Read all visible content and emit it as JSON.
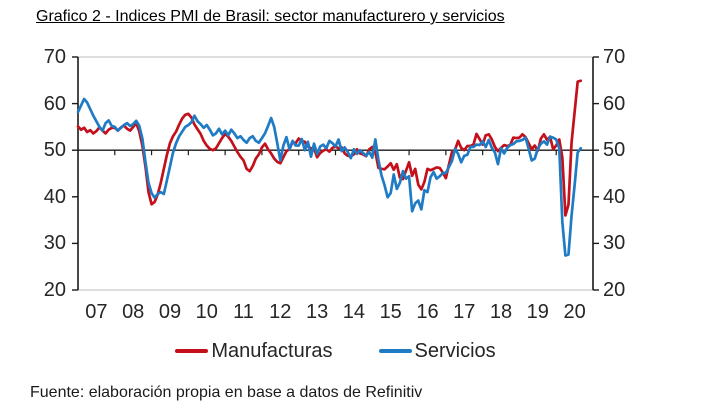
{
  "figure": {
    "title": "Grafico 2 - Indices PMI de Brasil: sector manufacturero y servicios",
    "source_note": "Fuente: elaboración propia en base a datos de Refinitiv"
  },
  "chart_data": {
    "type": "line",
    "title": "Grafico 2 - Indices PMI de Brasil: sector manufacturero y servicios",
    "x_axis": {
      "frequency": "monthly",
      "start": "2007-01",
      "end": "2020-09",
      "range_years": [
        2007,
        2021
      ],
      "tick_labels": [
        "07",
        "08",
        "09",
        "10",
        "11",
        "12",
        "13",
        "14",
        "15",
        "16",
        "17",
        "18",
        "19",
        "20"
      ]
    },
    "y_axis": {
      "range": [
        20,
        70
      ],
      "ticks": [
        70,
        60,
        50,
        40,
        30,
        20
      ],
      "label_sides": "both"
    },
    "reference_line_y": 50,
    "grid": false,
    "legend_position": "bottom",
    "colors": {
      "manufacturas": "#c3101b",
      "servicios": "#1f7bc4",
      "axis": "#1a1a1a",
      "frame": "#c9c9c9"
    },
    "series": [
      {
        "name": "Manufacturas",
        "color": "#c3101b",
        "values": [
          55.1,
          54.4,
          54.8,
          53.9,
          54.3,
          53.6,
          54.1,
          54.9,
          54.2,
          53.6,
          54.4,
          54.8,
          54.8,
          54.2,
          54.9,
          55.3,
          54.6,
          54.2,
          55.0,
          55.8,
          54.0,
          51.0,
          46.5,
          41.0,
          38.4,
          38.9,
          40.5,
          43.0,
          46.0,
          49.0,
          51.5,
          53.0,
          54.0,
          55.5,
          56.8,
          57.6,
          57.8,
          57.0,
          55.5,
          54.5,
          53.5,
          52.0,
          51.0,
          50.3,
          50.0,
          50.4,
          51.5,
          52.6,
          53.5,
          52.9,
          52.0,
          50.8,
          49.6,
          48.6,
          47.8,
          46.0,
          45.5,
          46.6,
          48.2,
          49.1,
          50.6,
          51.4,
          50.2,
          49.3,
          48.2,
          47.5,
          47.2,
          48.5,
          49.8,
          50.2,
          51.8,
          51.5,
          52.5,
          52.0,
          51.8,
          50.8,
          50.4,
          50.4,
          48.5,
          49.4,
          49.9,
          50.2,
          49.7,
          50.5,
          50.8,
          50.4,
          50.6,
          49.3,
          48.8,
          48.7,
          49.1,
          50.2,
          49.3,
          49.1,
          48.7,
          50.2,
          50.7,
          49.6,
          46.2,
          46.0,
          45.9,
          46.5,
          47.2,
          45.8,
          47.0,
          44.1,
          43.8,
          45.6,
          47.4,
          44.5,
          46.0,
          42.6,
          41.6,
          43.2,
          46.0,
          45.7,
          46.0,
          46.3,
          46.2,
          45.2,
          44.0,
          46.9,
          49.6,
          50.1,
          52.0,
          50.5,
          50.0,
          50.9,
          50.9,
          51.2,
          53.5,
          52.4,
          51.2,
          53.2,
          53.4,
          52.3,
          50.7,
          49.8,
          50.5,
          51.1,
          50.9,
          51.1,
          52.7,
          52.6,
          52.7,
          53.4,
          52.8,
          51.5,
          50.2,
          51.0,
          49.9,
          52.5,
          53.4,
          52.2,
          52.9,
          50.2,
          51.0,
          52.3,
          48.4,
          36.0,
          38.3,
          51.6,
          58.2,
          64.7,
          64.9
        ]
      },
      {
        "name": "Servicios",
        "color": "#1f7bc4",
        "values": [
          58.2,
          59.6,
          61.0,
          60.2,
          58.8,
          57.4,
          56.2,
          55.0,
          54.2,
          55.8,
          56.4,
          55.2,
          55.0,
          54.2,
          54.8,
          55.4,
          55.8,
          55.2,
          55.6,
          56.3,
          55.2,
          52.5,
          47.5,
          43.0,
          40.8,
          39.8,
          40.6,
          41.0,
          40.6,
          43.5,
          46.5,
          49.5,
          51.5,
          53.0,
          54.0,
          55.0,
          55.4,
          56.0,
          57.4,
          56.2,
          55.6,
          54.8,
          55.4,
          54.4,
          53.2,
          53.6,
          54.6,
          53.4,
          54.2,
          53.2,
          54.4,
          53.6,
          52.6,
          53.0,
          52.2,
          51.6,
          52.6,
          53.0,
          52.0,
          51.6,
          52.6,
          53.6,
          55.2,
          56.9,
          55.0,
          51.5,
          47.8,
          51.0,
          52.8,
          50.2,
          52.0,
          51.0,
          51.0,
          52.4,
          50.0,
          51.8,
          48.6,
          51.4,
          49.2,
          50.8,
          51.2,
          50.4,
          52.0,
          51.5,
          50.8,
          52.3,
          49.8,
          50.6,
          49.6,
          48.3,
          50.2,
          49.2,
          50.0,
          49.4,
          48.8,
          49.6,
          48.4,
          52.3,
          47.9,
          44.6,
          42.5,
          39.9,
          40.8,
          44.8,
          41.7,
          43.0,
          45.5,
          43.9,
          44.4,
          36.9,
          38.6,
          39.2,
          37.3,
          41.4,
          41.0,
          44.2,
          45.3,
          43.9,
          44.4,
          45.1,
          45.1,
          46.4,
          47.7,
          50.3,
          49.2,
          47.4,
          48.8,
          49.0,
          50.7,
          50.7,
          51.2,
          51.1,
          51.9,
          50.7,
          52.2,
          50.5,
          49.5,
          47.0,
          50.4,
          49.3,
          50.5,
          51.1,
          51.3,
          51.9,
          52.0,
          52.2,
          52.7,
          50.3,
          47.8,
          48.2,
          50.3,
          51.4,
          51.9,
          51.2,
          52.9,
          52.7,
          52.3,
          50.4,
          34.5,
          27.4,
          27.6,
          35.9,
          42.5,
          49.5,
          50.4
        ]
      }
    ]
  }
}
